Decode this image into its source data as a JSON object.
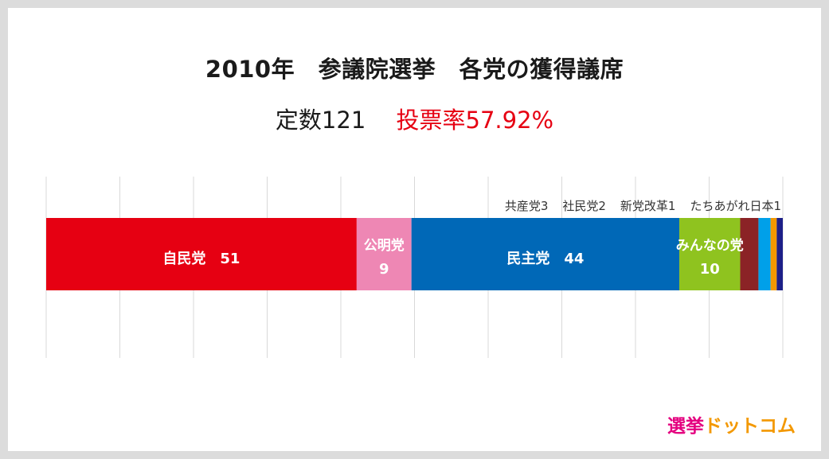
{
  "title": "2010年　参議院選挙　各党の獲得議席",
  "subtitle": {
    "seats": "定数121",
    "turnout": "投票率57.92%"
  },
  "logo": {
    "part1": "選挙",
    "part2": "ドットコム",
    "color1": "#e4007f",
    "color2": "#f39800"
  },
  "chart_data": {
    "type": "bar",
    "orientation": "horizontal-stacked",
    "total": 121,
    "grid": true,
    "segments": [
      {
        "name": "自民党",
        "value": 51,
        "label": "自民党　51",
        "color": "#e60012",
        "label_position": "inside"
      },
      {
        "name": "公明党",
        "value": 9,
        "label_lines": [
          "公明党",
          "9"
        ],
        "color": "#ee87b4",
        "label_position": "inside"
      },
      {
        "name": "民主党",
        "value": 44,
        "label": "民主党　44",
        "color": "#0068b7",
        "label_position": "inside"
      },
      {
        "name": "みんなの党",
        "value": 10,
        "label_lines": [
          "みんなの党",
          "10"
        ],
        "color": "#8fc31f",
        "label_position": "inside"
      },
      {
        "name": "共産党",
        "value": 3,
        "label": "共産党3",
        "color": "#8b2326",
        "label_position": "above"
      },
      {
        "name": "社民党",
        "value": 2,
        "label": "社民党2",
        "color": "#00a0e9",
        "label_position": "above"
      },
      {
        "name": "新党改革",
        "value": 1,
        "label": "新党改革1",
        "color": "#f39800",
        "label_position": "above"
      },
      {
        "name": "たちあがれ日本",
        "value": 1,
        "label": "たちあがれ日本1",
        "color": "#1d2088",
        "label_position": "above"
      }
    ]
  }
}
